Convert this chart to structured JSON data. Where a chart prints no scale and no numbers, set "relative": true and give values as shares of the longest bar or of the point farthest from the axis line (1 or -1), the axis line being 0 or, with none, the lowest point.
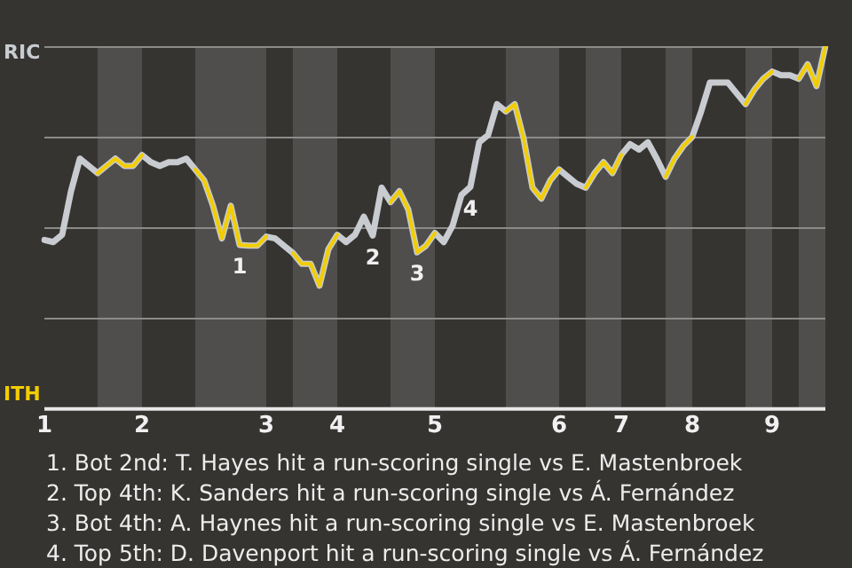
{
  "chart_data": {
    "type": "line",
    "relative": true,
    "grid": "y",
    "legend": false,
    "categories": [
      "1",
      null,
      null,
      null,
      null,
      null,
      null,
      null,
      null,
      null,
      null,
      "2",
      null,
      null,
      null,
      null,
      null,
      null,
      null,
      null,
      null,
      null,
      null,
      null,
      null,
      "3",
      null,
      null,
      null,
      null,
      null,
      null,
      null,
      "4",
      null,
      null,
      null,
      null,
      null,
      null,
      null,
      null,
      null,
      null,
      "5",
      null,
      null,
      null,
      null,
      null,
      null,
      null,
      null,
      null,
      null,
      null,
      null,
      null,
      "6",
      null,
      null,
      null,
      null,
      null,
      null,
      "7",
      null,
      null,
      null,
      null,
      null,
      null,
      null,
      "8",
      null,
      null,
      null,
      null,
      null,
      null,
      null,
      null,
      "9",
      null,
      null,
      null,
      null,
      null,
      null
    ],
    "series": [
      {
        "name": "RIC",
        "color": "#c8ccd0",
        "values": [
          0.466,
          0.46,
          0.48,
          0.6,
          0.69,
          0.67,
          0.65,
          0.67,
          0.69,
          0.67,
          0.67,
          0.7,
          0.68,
          0.67,
          0.68,
          0.68,
          0.69,
          0.66,
          0.63,
          0.56,
          0.47,
          0.56,
          0.452,
          0.45,
          0.45,
          0.475,
          0.47,
          0.45,
          0.43,
          0.4,
          0.4,
          0.34,
          0.44,
          0.48,
          0.46,
          0.48,
          0.53,
          0.478,
          0.61,
          0.57,
          0.6,
          0.55,
          0.432,
          0.45,
          0.485,
          0.46,
          0.505,
          0.59,
          0.612,
          0.735,
          0.755,
          0.84,
          0.82,
          0.84,
          0.745,
          0.61,
          0.58,
          0.63,
          0.66,
          0.64,
          0.62,
          0.61,
          0.65,
          0.68,
          0.65,
          0.7,
          0.73,
          0.715,
          0.735,
          0.69,
          0.64,
          0.69,
          0.725,
          0.75,
          0.82,
          0.9,
          0.9,
          0.9,
          0.87,
          0.84,
          0.88,
          0.91,
          0.93,
          0.92,
          0.92,
          0.91,
          0.95,
          0.89,
          1.0
        ]
      },
      {
        "name": "ITH",
        "color": "#f2cd00",
        "values": [
          null,
          null,
          null,
          null,
          null,
          null,
          0.65,
          0.67,
          0.69,
          0.67,
          0.67,
          0.7,
          null,
          null,
          null,
          null,
          null,
          0.66,
          0.63,
          0.56,
          0.47,
          0.56,
          0.452,
          0.45,
          0.45,
          0.475,
          null,
          null,
          0.43,
          0.4,
          0.4,
          0.34,
          0.44,
          0.48,
          null,
          null,
          null,
          null,
          null,
          0.57,
          0.6,
          0.55,
          0.432,
          0.45,
          0.485,
          null,
          null,
          null,
          null,
          null,
          null,
          null,
          0.82,
          0.84,
          0.745,
          0.61,
          0.58,
          0.63,
          0.66,
          null,
          null,
          0.61,
          0.65,
          0.68,
          0.65,
          0.7,
          null,
          null,
          null,
          null,
          0.64,
          0.69,
          0.725,
          0.75,
          null,
          null,
          null,
          null,
          null,
          0.84,
          0.88,
          0.91,
          0.93,
          null,
          null,
          0.91,
          0.95,
          0.89,
          1.0
        ]
      }
    ],
    "annotations": [
      {
        "text": "1",
        "y": 0.452
      },
      {
        "text": "2",
        "y": 0.478
      },
      {
        "text": "3",
        "y": 0.432
      },
      {
        "text": "4",
        "y": 0.612
      },
      "1. Bot 2nd: T. Hayes hit a run-scoring single vs E. Mastenbroek",
      "2. Top 4th: K. Sanders hit a run-scoring single vs Á. Fernández",
      "3. Bot 4th: A. Haynes hit a run-scoring single vs E. Mastenbroek",
      "4. Top 5th: D. Davenport hit a run-scoring single vs Á. Fernández"
    ]
  }
}
